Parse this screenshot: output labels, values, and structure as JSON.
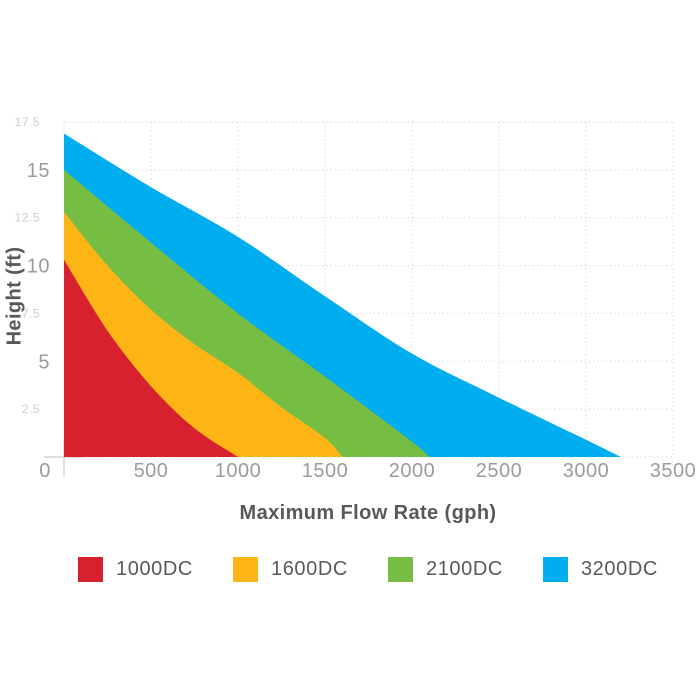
{
  "chart_data": {
    "type": "area",
    "title": "",
    "xlabel": "Maximum Flow Rate (gph)",
    "ylabel": "Height (ft)",
    "xlim": [
      0,
      3500
    ],
    "ylim": [
      0,
      17.5
    ],
    "grid": true,
    "grid_style": "dotted",
    "legend_position": "bottom",
    "x_ticks": [
      500,
      1000,
      1500,
      2000,
      2500,
      3000,
      3500
    ],
    "origin_label": "0",
    "y_ticks_major": [
      15,
      10,
      5
    ],
    "y_ticks_minor": [
      17.5,
      12.5,
      7.5,
      2.5
    ],
    "series": [
      {
        "name": "3200DC",
        "color": "#00AEEF",
        "points": [
          [
            0,
            16.9
          ],
          [
            500,
            14.1
          ],
          [
            1000,
            11.5
          ],
          [
            1500,
            8.4
          ],
          [
            2000,
            5.4
          ],
          [
            2500,
            3.1
          ],
          [
            3000,
            0.9
          ],
          [
            3200,
            0
          ]
        ]
      },
      {
        "name": "2100DC",
        "color": "#76BD43",
        "points": [
          [
            0,
            15.0
          ],
          [
            500,
            11.2
          ],
          [
            1000,
            7.5
          ],
          [
            1500,
            4.2
          ],
          [
            2000,
            0.8
          ],
          [
            2100,
            0
          ]
        ]
      },
      {
        "name": "1600DC",
        "color": "#FDB515",
        "points": [
          [
            0,
            12.8
          ],
          [
            250,
            10.0
          ],
          [
            500,
            7.7
          ],
          [
            750,
            5.9
          ],
          [
            1000,
            4.4
          ],
          [
            1250,
            2.6
          ],
          [
            1500,
            1.0
          ],
          [
            1600,
            0
          ]
        ]
      },
      {
        "name": "1000DC",
        "color": "#D7212F",
        "points": [
          [
            0,
            10.3
          ],
          [
            250,
            6.6
          ],
          [
            500,
            3.7
          ],
          [
            750,
            1.5
          ],
          [
            1000,
            0
          ]
        ]
      }
    ]
  },
  "legend": {
    "items": [
      {
        "label": "1000DC",
        "color": "#D7212F"
      },
      {
        "label": "1600DC",
        "color": "#FDB515"
      },
      {
        "label": "2100DC",
        "color": "#76BD43"
      },
      {
        "label": "3200DC",
        "color": "#00AEEF"
      }
    ]
  },
  "colors": {
    "grid": "#DBDBDB",
    "origin_cross": "#CCCCCC",
    "tick_major": "#9B9B9B",
    "tick_minor": "#CDCDCD",
    "axis_title": "#57585A"
  }
}
